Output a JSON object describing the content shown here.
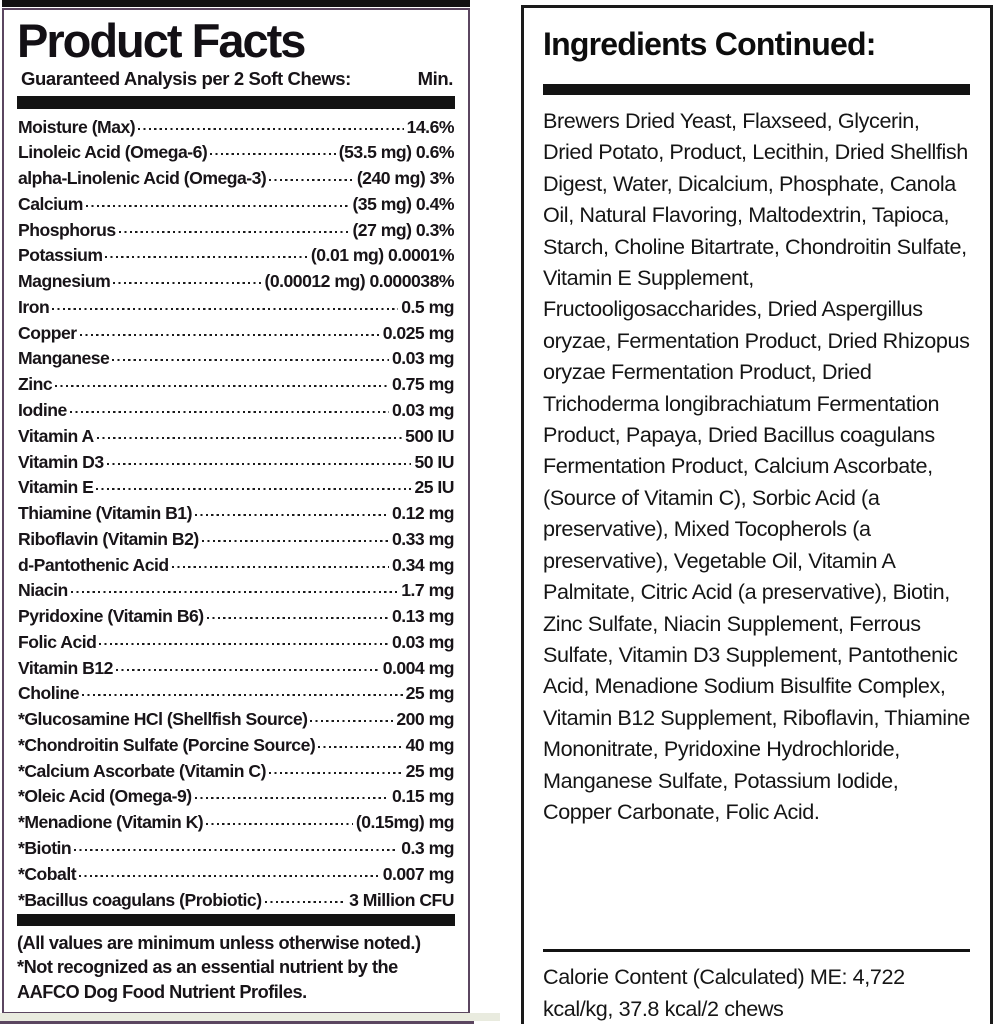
{
  "left_panel": {
    "title": "Product Facts",
    "subtitle": "Guaranteed Analysis per 2 Soft Chews:",
    "min_label": "Min.",
    "rows": [
      {
        "label": "Moisture (Max)",
        "value": "14.6%"
      },
      {
        "label": "Linoleic Acid (Omega-6)",
        "value": "(53.5 mg) 0.6%"
      },
      {
        "label": "alpha-Linolenic Acid (Omega-3)",
        "value": "(240 mg) 3%"
      },
      {
        "label": "Calcium",
        "value": "(35 mg) 0.4%"
      },
      {
        "label": "Phosphorus",
        "value": "(27 mg) 0.3%"
      },
      {
        "label": "Potassium",
        "value": "(0.01 mg) 0.0001%"
      },
      {
        "label": "Magnesium",
        "value": "(0.00012 mg) 0.000038%"
      },
      {
        "label": "Iron",
        "value": "0.5 mg"
      },
      {
        "label": "Copper",
        "value": "0.025 mg"
      },
      {
        "label": "Manganese",
        "value": "0.03 mg"
      },
      {
        "label": "Zinc",
        "value": "0.75 mg"
      },
      {
        "label": "Iodine",
        "value": "0.03 mg"
      },
      {
        "label": "Vitamin A",
        "value": "500 IU"
      },
      {
        "label": "Vitamin D3",
        "value": "50 IU"
      },
      {
        "label": "Vitamin E",
        "value": "25 IU"
      },
      {
        "label": "Thiamine (Vitamin B1)",
        "value": "0.12 mg"
      },
      {
        "label": "Riboflavin (Vitamin B2)",
        "value": "0.33 mg"
      },
      {
        "label": "d-Pantothenic Acid",
        "value": "0.34 mg"
      },
      {
        "label": "Niacin",
        "value": "1.7 mg"
      },
      {
        "label": "Pyridoxine (Vitamin B6)",
        "value": "0.13 mg"
      },
      {
        "label": "Folic Acid",
        "value": "0.03 mg"
      },
      {
        "label": "Vitamin B12",
        "value": "0.004 mg"
      },
      {
        "label": "Choline",
        "value": "25 mg"
      },
      {
        "label": "*Glucosamine HCl (Shellfish Source)",
        "value": "200 mg"
      },
      {
        "label": "*Chondroitin Sulfate (Porcine Source)",
        "value": "40 mg"
      },
      {
        "label": "*Calcium Ascorbate (Vitamin C)",
        "value": "25 mg"
      },
      {
        "label": "*Oleic Acid (Omega-9)",
        "value": "0.15 mg"
      },
      {
        "label": "*Menadione (Vitamin K)",
        "value": "(0.15mg) mg"
      },
      {
        "label": "*Biotin",
        "value": "0.3 mg"
      },
      {
        "label": "*Cobalt",
        "value": "0.007 mg"
      },
      {
        "label": "*Bacillus coagulans (Probiotic)",
        "value": "3 Million CFU"
      }
    ],
    "footnote_line1": "(All values are minimum unless otherwise noted.)",
    "footnote_line2": "*Not recognized as an essential nutrient by the AAFCO Dog Food Nutrient Profiles."
  },
  "right_panel": {
    "title": "Ingredients Continued:",
    "ingredients": "Brewers Dried Yeast, Flaxseed, Glycerin, Dried Potato, Product,  Lecithin, Dried Shellfish Digest, Water, Dicalcium, Phosphate, Canola Oil, Natural Flavoring, Maltodextrin, Tapioca, Starch, Choline Bitartrate, Chondroitin Sulfate, Vitamin E Supplement, Fructooligosaccharides, Dried Aspergillus oryzae, Fermentation Product, Dried Rhizopus oryzae Fermentation Product, Dried Trichoderma longibrachiatum Fermentation Product, Papaya, Dried Bacillus coagulans Fermentation Product, Calcium Ascorbate, (Source of Vitamin C), Sorbic Acid (a preservative), Mixed Tocopherols (a preservative), Vegetable Oil, Vitamin A Palmitate, Citric Acid (a preservative), Biotin, Zinc Sulfate, Niacin Supplement, Ferrous Sulfate, Vitamin D3 Supplement, Pantothenic Acid, Menadione Sodium Bisulfite Complex, Vitamin B12 Supplement,  Riboflavin, Thiamine Mononitrate, Pyridoxine Hydrochloride, Manganese Sulfate, Potassium Iodide, Copper Carbonate, Folic Acid.",
    "calorie_content": "Calorie Content (Calculated) ME: 4,722 kcal/kg, 37.8 kcal/2 chews"
  },
  "colors": {
    "left_border": "#5b4660",
    "right_border": "#1a1a1a",
    "bar": "#131313",
    "pale_strip": "#e9ebdf"
  }
}
